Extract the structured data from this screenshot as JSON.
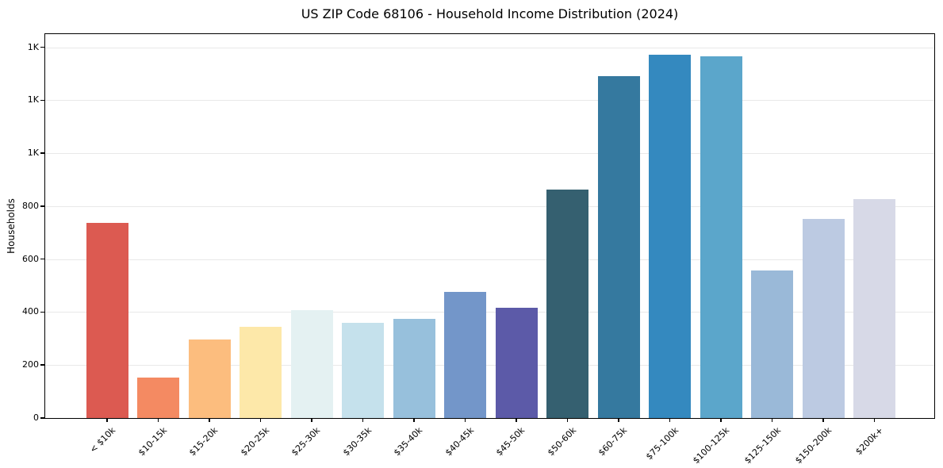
{
  "chart_data": {
    "type": "bar",
    "title": "US ZIP Code 68106 - Household Income Distribution (2024)",
    "xlabel": "",
    "ylabel": "Households",
    "categories": [
      "< $10k",
      "$10-15k",
      "$15-20k",
      "$20-25k",
      "$25-30k",
      "$30-35k",
      "$35-40k",
      "$40-45k",
      "$45-50k",
      "$50-60k",
      "$60-75k",
      "$75-100k",
      "$100-125k",
      "$125-150k",
      "$150-200k",
      "$200k+"
    ],
    "values": [
      738,
      154,
      297,
      346,
      408,
      361,
      376,
      477,
      415,
      864,
      1292,
      1373,
      1367,
      558,
      753,
      828
    ],
    "bar_colors": [
      "#dc5a51",
      "#f48a62",
      "#fcbd7e",
      "#fde8a9",
      "#e4f1f2",
      "#c5e1ec",
      "#97c0dc",
      "#7396c9",
      "#5c5aa8",
      "#356070",
      "#35799f",
      "#3489bf",
      "#5ba6cb",
      "#9ab9d8",
      "#bccae2",
      "#d7d9e7"
    ],
    "ylim": [
      0,
      1450
    ],
    "yticks": [
      {
        "value": 0,
        "label": "0"
      },
      {
        "value": 200,
        "label": "200"
      },
      {
        "value": 400,
        "label": "400"
      },
      {
        "value": 600,
        "label": "600"
      },
      {
        "value": 800,
        "label": "800"
      },
      {
        "value": 1000,
        "label": "1K"
      },
      {
        "value": 1200,
        "label": "1K"
      },
      {
        "value": 1400,
        "label": "1K"
      }
    ],
    "grid": "horizontal-only",
    "legend": "none"
  },
  "colors": {
    "background": "#ffffff",
    "grid": "#e9e9e9",
    "spine": "#000000",
    "text": "#000000"
  }
}
